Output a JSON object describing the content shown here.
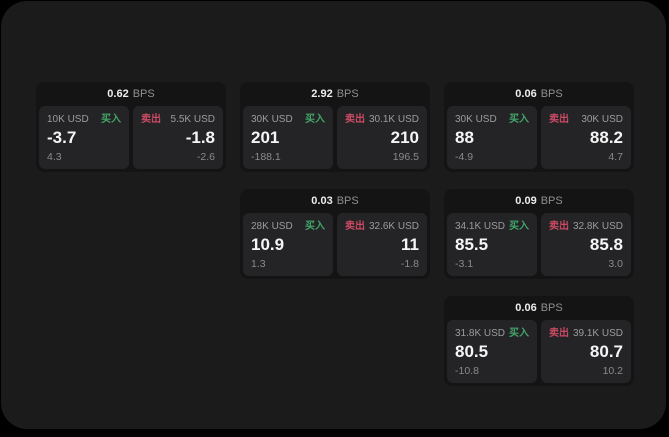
{
  "theme": {
    "background": "#000000",
    "panel_bg": "#1b1b1c",
    "card_bg": "#141415",
    "tile_bg": "#242427",
    "text_primary": "#f5f5f5",
    "text_secondary": "#9c9c9c",
    "text_muted": "#8a8a8a",
    "buy_color": "#42a568",
    "sell_color": "#c94a62"
  },
  "labels": {
    "bps_unit": "BPS",
    "buy": "买入",
    "sell": "卖出"
  },
  "cards": [
    {
      "row": 0,
      "col": 0,
      "bps": "0.62",
      "buy": {
        "size": "10K USD",
        "price": "-3.7",
        "delta": "4.3"
      },
      "sell": {
        "size": "5.5K USD",
        "price": "-1.8",
        "delta": "-2.6"
      }
    },
    {
      "row": 0,
      "col": 1,
      "bps": "2.92",
      "buy": {
        "size": "30K USD",
        "price": "201",
        "delta": "-188.1"
      },
      "sell": {
        "size": "30.1K USD",
        "price": "210",
        "delta": "196.5"
      }
    },
    {
      "row": 0,
      "col": 2,
      "bps": "0.06",
      "buy": {
        "size": "30K USD",
        "price": "88",
        "delta": "-4.9"
      },
      "sell": {
        "size": "30K USD",
        "price": "88.2",
        "delta": "4.7"
      }
    },
    {
      "row": 1,
      "col": 1,
      "bps": "0.03",
      "buy": {
        "size": "28K USD",
        "price": "10.9",
        "delta": "1.3"
      },
      "sell": {
        "size": "32.6K USD",
        "price": "11",
        "delta": "-1.8"
      }
    },
    {
      "row": 1,
      "col": 2,
      "bps": "0.09",
      "buy": {
        "size": "34.1K USD",
        "price": "85.5",
        "delta": "-3.1"
      },
      "sell": {
        "size": "32.8K USD",
        "price": "85.8",
        "delta": "3.0"
      }
    },
    {
      "row": 2,
      "col": 2,
      "bps": "0.06",
      "buy": {
        "size": "31.8K USD",
        "price": "80.5",
        "delta": "-10.8"
      },
      "sell": {
        "size": "39.1K USD",
        "price": "80.7",
        "delta": "10.2"
      }
    }
  ]
}
